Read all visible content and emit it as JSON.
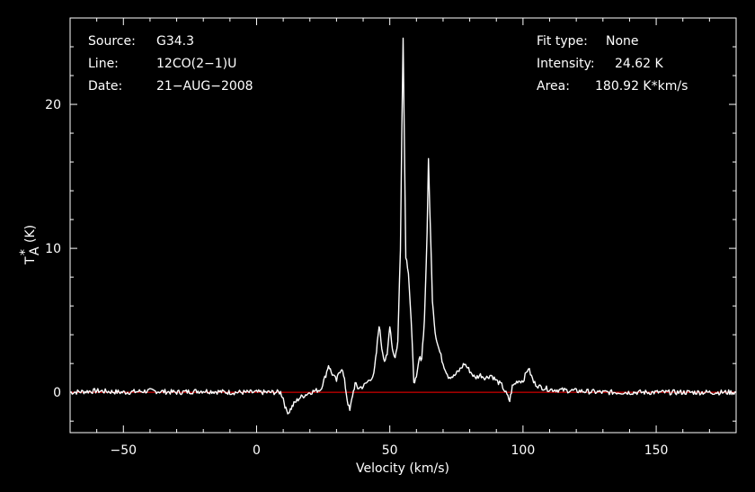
{
  "chart_data": {
    "type": "line",
    "title": "",
    "xlabel": "Velocity (km/s)",
    "ylabel_main": "T",
    "ylabel_sup": "*",
    "ylabel_sub": "A",
    "ylabel_unit": "(K)",
    "xlim": [
      -70,
      180
    ],
    "ylim": [
      -2.8,
      26
    ],
    "x_ticks": [
      -50,
      0,
      50,
      100,
      150
    ],
    "x_tick_labels": [
      "−50",
      "0",
      "50",
      "100",
      "150"
    ],
    "y_ticks": [
      0,
      10,
      20
    ],
    "y_tick_labels": [
      "0",
      "10",
      "20"
    ],
    "grid": false,
    "baseline": {
      "y": 0,
      "color": "#ff0000"
    },
    "line_color": "#ffffff",
    "series": [
      {
        "x": [
          -70,
          -60,
          -50,
          -40,
          -30,
          -20,
          -10,
          0,
          5,
          9,
          10,
          11,
          12,
          13,
          14,
          16,
          18,
          20,
          24,
          26,
          27,
          28,
          30,
          31,
          32,
          33,
          34,
          35,
          36,
          37,
          38,
          40,
          42,
          44,
          45,
          46,
          47,
          48,
          49,
          50,
          51,
          52,
          53,
          54,
          54.5,
          55,
          55.5,
          56,
          57,
          58,
          59,
          60,
          61,
          62,
          63,
          64,
          64.5,
          65,
          66,
          67,
          68,
          70,
          72,
          74,
          76,
          78,
          80,
          82,
          84,
          86,
          88,
          90,
          92,
          94,
          95,
          96,
          98,
          100,
          102,
          104,
          106,
          110,
          120,
          130,
          140,
          150,
          160,
          170,
          180
        ],
        "y": [
          0,
          0.1,
          0,
          0.1,
          0,
          0.1,
          0,
          0,
          0,
          0,
          -0.4,
          -1.2,
          -1.4,
          -1.1,
          -0.8,
          -0.4,
          -0.2,
          0,
          0.2,
          1.2,
          1.9,
          1.4,
          0.8,
          1.4,
          1.7,
          0.8,
          -0.5,
          -1.3,
          -0.2,
          0.6,
          0.3,
          0.4,
          0.8,
          1.2,
          2.8,
          4.7,
          3.1,
          2.2,
          2.5,
          4.7,
          3.0,
          2.4,
          3.5,
          10,
          18,
          24.6,
          17,
          9.5,
          8.4,
          5.0,
          0.8,
          0.9,
          2.3,
          2.4,
          5,
          11,
          16.2,
          13,
          6.5,
          4.2,
          3.3,
          2.0,
          1.1,
          1.1,
          1.5,
          2.0,
          1.5,
          1.0,
          1.2,
          1.0,
          1.2,
          0.8,
          0.5,
          -0.2,
          -0.6,
          0.4,
          0.8,
          0.8,
          1.7,
          0.7,
          0.4,
          0.2,
          0.1,
          0,
          0,
          0,
          0,
          0,
          0
        ]
      }
    ]
  },
  "info_left": [
    {
      "key": "Source:",
      "value": "G34.3"
    },
    {
      "key": "Line:",
      "value": "12CO(2−1)U"
    },
    {
      "key": "Date:",
      "value": "21−AUG−2008"
    }
  ],
  "info_right": [
    {
      "key": "Fit type:",
      "value": "None"
    },
    {
      "key": "Intensity:",
      "value": "24.62 K"
    },
    {
      "key": "Area:",
      "value": "180.92 K*km/s"
    }
  ]
}
